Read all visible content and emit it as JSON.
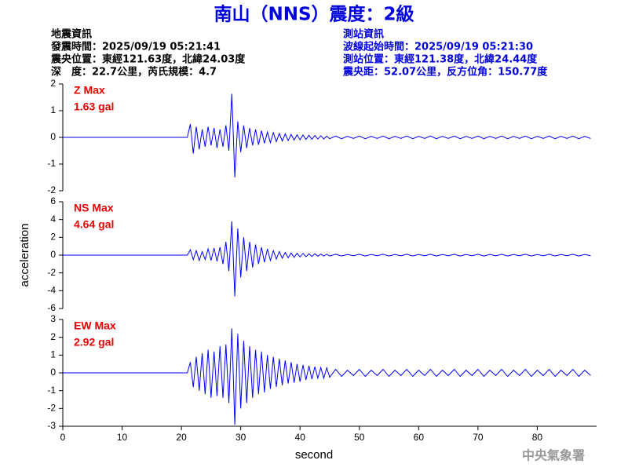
{
  "header": {
    "title": "南山（NNS）震度：2級",
    "event": {
      "heading": "地震資訊",
      "lines": [
        "發震時間：2025/09/19 05:21:41",
        "震央位置：東經121.63度，北緯24.03度",
        "深　度：22.7公里，芮氏規模：4.7"
      ]
    },
    "station": {
      "heading": "測站資訊",
      "lines": [
        "波線起始時間：2025/09/19 05:21:30",
        "測站位置：東經121.38度，北緯24.44度",
        "震央距：52.07公里，反方位角：150.77度"
      ]
    }
  },
  "footer": {
    "agency": "中央氣象署"
  },
  "chart_data": [
    {
      "type": "line",
      "label": "Z Max",
      "max_label": "1.63 gal",
      "color": "#0000ff",
      "xlim": [
        0,
        90
      ],
      "ylim": [
        -2,
        2
      ],
      "yticks": [
        -2,
        -1,
        0,
        1,
        2
      ],
      "x": [
        0,
        21,
        21.5,
        22,
        22.5,
        23,
        23.5,
        24,
        24.5,
        25,
        25.5,
        26,
        26.5,
        27,
        27.5,
        28,
        28.5,
        29,
        29.5,
        30,
        30.5,
        31,
        31.5,
        32,
        32.5,
        33,
        33.5,
        34,
        34.5,
        35,
        35.5,
        36,
        36.5,
        37,
        37.5,
        38,
        38.5,
        39,
        39.5,
        40,
        40.5,
        41,
        41.5,
        42,
        42.5,
        43,
        43.5,
        44,
        44.5,
        45,
        46,
        47,
        48,
        49,
        50,
        51,
        52,
        53,
        54,
        55,
        56,
        57,
        58,
        59,
        60,
        61,
        62,
        63,
        64,
        65,
        66,
        67,
        68,
        69,
        70,
        71,
        72,
        73,
        74,
        75,
        76,
        77,
        78,
        79,
        80,
        81,
        82,
        83,
        84,
        85,
        86,
        87,
        88,
        89
      ],
      "values": [
        0,
        0,
        0.5,
        -0.6,
        0.4,
        -0.45,
        0.3,
        -0.35,
        0.4,
        -0.3,
        0.35,
        -0.4,
        0.3,
        -0.35,
        0.45,
        -0.5,
        1.63,
        -1.5,
        0.6,
        -0.55,
        0.45,
        -0.4,
        0.35,
        -0.3,
        0.3,
        -0.28,
        0.25,
        -0.22,
        0.2,
        -0.2,
        0.18,
        -0.16,
        0.15,
        -0.14,
        0.13,
        -0.12,
        0.11,
        -0.1,
        0.1,
        -0.09,
        0.09,
        -0.08,
        0.08,
        -0.07,
        0.07,
        -0.06,
        0.06,
        -0.06,
        0.05,
        -0.05,
        0.05,
        -0.05,
        0.04,
        -0.04,
        0.05,
        -0.05,
        0.04,
        -0.04,
        0.05,
        -0.05,
        0.04,
        -0.04,
        0.05,
        -0.05,
        0.04,
        -0.04,
        0.05,
        -0.05,
        0.04,
        -0.04,
        0.05,
        -0.05,
        0.04,
        -0.04,
        0.05,
        -0.05,
        0.04,
        -0.04,
        0.05,
        -0.05,
        0.04,
        -0.04,
        0.05,
        -0.05,
        0.04,
        -0.04,
        0.05,
        -0.05,
        0.04,
        -0.04,
        0.05,
        -0.05,
        0.04,
        -0.04
      ]
    },
    {
      "type": "line",
      "label": "NS Max",
      "max_label": "4.64 gal",
      "color": "#0000ff",
      "ylabel": "acceleration",
      "xlim": [
        0,
        90
      ],
      "ylim": [
        -6,
        6
      ],
      "yticks": [
        -6,
        -4,
        -2,
        0,
        2,
        4,
        6
      ],
      "x": [
        0,
        21,
        21.5,
        22,
        22.5,
        23,
        23.5,
        24,
        24.5,
        25,
        25.5,
        26,
        26.5,
        27,
        27.5,
        28,
        28.5,
        29,
        29.5,
        30,
        30.5,
        31,
        31.5,
        32,
        32.5,
        33,
        33.5,
        34,
        34.5,
        35,
        35.5,
        36,
        36.5,
        37,
        37.5,
        38,
        38.5,
        39,
        39.5,
        40,
        40.5,
        41,
        41.5,
        42,
        42.5,
        43,
        43.5,
        44,
        44.5,
        45,
        46,
        47,
        48,
        49,
        50,
        51,
        52,
        53,
        54,
        55,
        56,
        57,
        58,
        59,
        60,
        61,
        62,
        63,
        64,
        65,
        66,
        67,
        68,
        69,
        70,
        71,
        72,
        73,
        74,
        75,
        76,
        77,
        78,
        79,
        80,
        81,
        82,
        83,
        84,
        85,
        86,
        87,
        88,
        89
      ],
      "values": [
        0,
        0,
        0.6,
        -0.5,
        0.5,
        -0.6,
        0.4,
        -0.5,
        0.7,
        -0.6,
        0.8,
        -0.7,
        0.9,
        -1.0,
        1.5,
        -1.8,
        3.8,
        -4.64,
        3.0,
        -2.5,
        2.0,
        -1.8,
        1.5,
        -1.4,
        1.2,
        -1.0,
        0.9,
        -0.8,
        0.7,
        -0.6,
        0.5,
        -0.45,
        0.4,
        -0.35,
        0.3,
        -0.3,
        0.25,
        -0.25,
        0.2,
        -0.2,
        0.2,
        -0.18,
        0.15,
        -0.15,
        0.15,
        -0.12,
        0.12,
        -0.1,
        0.1,
        -0.1,
        0.1,
        -0.1,
        0.08,
        -0.08,
        0.1,
        -0.1,
        0.08,
        -0.08,
        0.1,
        -0.1,
        0.08,
        -0.08,
        0.1,
        -0.1,
        0.08,
        -0.08,
        0.1,
        -0.1,
        0.08,
        -0.08,
        0.1,
        -0.1,
        0.08,
        -0.08,
        0.1,
        -0.1,
        0.08,
        -0.08,
        0.1,
        -0.1,
        0.08,
        -0.08,
        0.1,
        -0.1,
        0.08,
        -0.08,
        0.1,
        -0.1,
        0.08,
        -0.08,
        0.1,
        -0.1,
        0.08,
        -0.08
      ]
    },
    {
      "type": "line",
      "label": "EW Max",
      "max_label": "2.92 gal",
      "color": "#0000ff",
      "xlabel": "second",
      "xlim": [
        0,
        90
      ],
      "xticks": [
        0,
        10,
        20,
        30,
        40,
        50,
        60,
        70,
        80
      ],
      "ylim": [
        -3,
        3
      ],
      "yticks": [
        -3,
        -2,
        -1,
        0,
        1,
        2,
        3
      ],
      "x": [
        0,
        21,
        21.5,
        22,
        22.5,
        23,
        23.5,
        24,
        24.5,
        25,
        25.5,
        26,
        26.5,
        27,
        27.5,
        28,
        28.5,
        29,
        29.5,
        30,
        30.5,
        31,
        31.5,
        32,
        32.5,
        33,
        33.5,
        34,
        34.5,
        35,
        35.5,
        36,
        36.5,
        37,
        37.5,
        38,
        38.5,
        39,
        39.5,
        40,
        40.5,
        41,
        41.5,
        42,
        42.5,
        43,
        43.5,
        44,
        44.5,
        45,
        46,
        47,
        48,
        49,
        50,
        51,
        52,
        53,
        54,
        55,
        56,
        57,
        58,
        59,
        60,
        61,
        62,
        63,
        64,
        65,
        66,
        67,
        68,
        69,
        70,
        71,
        72,
        73,
        74,
        75,
        76,
        77,
        78,
        79,
        80,
        81,
        82,
        83,
        84,
        85,
        86,
        87,
        88,
        89
      ],
      "values": [
        0,
        0,
        0.6,
        -0.8,
        0.9,
        -1.0,
        1.1,
        -1.2,
        1.3,
        -1.4,
        1.2,
        -1.3,
        1.5,
        -1.4,
        1.6,
        -1.7,
        2.5,
        -2.92,
        2.2,
        -2.0,
        1.8,
        -1.7,
        1.5,
        -1.4,
        1.3,
        -1.2,
        1.2,
        -1.1,
        1.0,
        -0.9,
        0.9,
        -0.8,
        0.8,
        -0.7,
        0.7,
        -0.6,
        0.6,
        -0.55,
        0.5,
        -0.5,
        0.45,
        -0.4,
        0.4,
        -0.35,
        0.35,
        -0.3,
        0.3,
        -0.3,
        0.28,
        -0.25,
        0.2,
        -0.2,
        0.15,
        -0.15,
        0.2,
        -0.2,
        0.15,
        -0.15,
        0.2,
        -0.2,
        0.15,
        -0.15,
        0.2,
        -0.2,
        0.15,
        -0.15,
        0.2,
        -0.2,
        0.15,
        -0.15,
        0.2,
        -0.2,
        0.15,
        -0.15,
        0.2,
        -0.2,
        0.15,
        -0.15,
        0.2,
        -0.2,
        0.15,
        -0.15,
        0.2,
        -0.2,
        0.15,
        -0.15,
        0.2,
        -0.2,
        0.15,
        -0.15,
        0.2,
        -0.2,
        0.15,
        -0.15
      ]
    }
  ]
}
